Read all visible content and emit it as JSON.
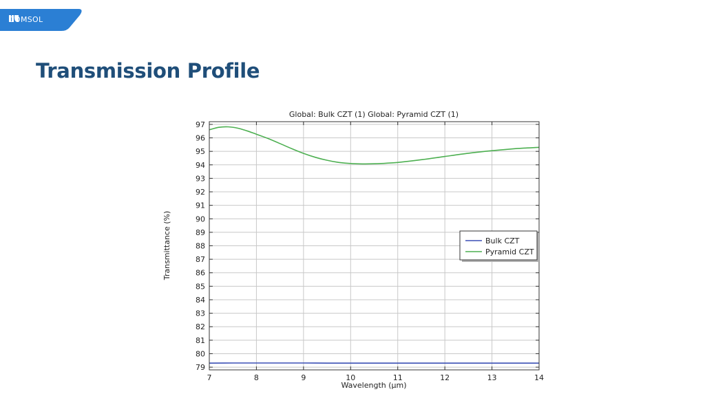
{
  "header": {
    "logo_text": "COMSOL",
    "logo_icon": "comsol-logo-icon",
    "brand_color": "#2b7fd4"
  },
  "page": {
    "title": "Transmission Profile",
    "title_color": "#1f4e79"
  },
  "chart_data": {
    "type": "line",
    "title": "Global: Bulk CZT (1)  Global: Pyramid CZT (1)",
    "xlabel": "Wavelength (µm)",
    "ylabel": "Transmittance (%)",
    "xlim": [
      7,
      14
    ],
    "ylim": [
      78.8,
      97.2
    ],
    "x_ticks": [
      "7",
      "8",
      "9",
      "10",
      "11",
      "12",
      "13",
      "14"
    ],
    "y_ticks": [
      "79",
      "80",
      "81",
      "82",
      "83",
      "84",
      "85",
      "86",
      "87",
      "88",
      "89",
      "90",
      "91",
      "92",
      "93",
      "94",
      "95",
      "96",
      "97"
    ],
    "grid": true,
    "legend_position": "right",
    "series": [
      {
        "name": "Bulk CZT",
        "color": "#3a4fb5",
        "x": [
          7,
          7.5,
          8,
          8.5,
          9,
          9.5,
          10,
          10.5,
          11,
          11.5,
          12,
          12.5,
          13,
          13.5,
          14
        ],
        "y": [
          79.3,
          79.31,
          79.31,
          79.31,
          79.31,
          79.3,
          79.3,
          79.3,
          79.3,
          79.3,
          79.3,
          79.3,
          79.3,
          79.3,
          79.3
        ]
      },
      {
        "name": "Pyramid CZT",
        "color": "#4caf50",
        "x": [
          7,
          7.2,
          7.4,
          7.6,
          7.8,
          8,
          8.25,
          8.5,
          8.75,
          9,
          9.25,
          9.5,
          9.75,
          10,
          10.25,
          10.5,
          10.75,
          11,
          11.5,
          12,
          12.5,
          13,
          13.5,
          14
        ],
        "y": [
          96.6,
          96.78,
          96.82,
          96.72,
          96.52,
          96.27,
          95.95,
          95.58,
          95.2,
          94.85,
          94.56,
          94.34,
          94.18,
          94.1,
          94.07,
          94.08,
          94.12,
          94.18,
          94.38,
          94.62,
          94.86,
          95.05,
          95.2,
          95.3
        ]
      }
    ]
  }
}
